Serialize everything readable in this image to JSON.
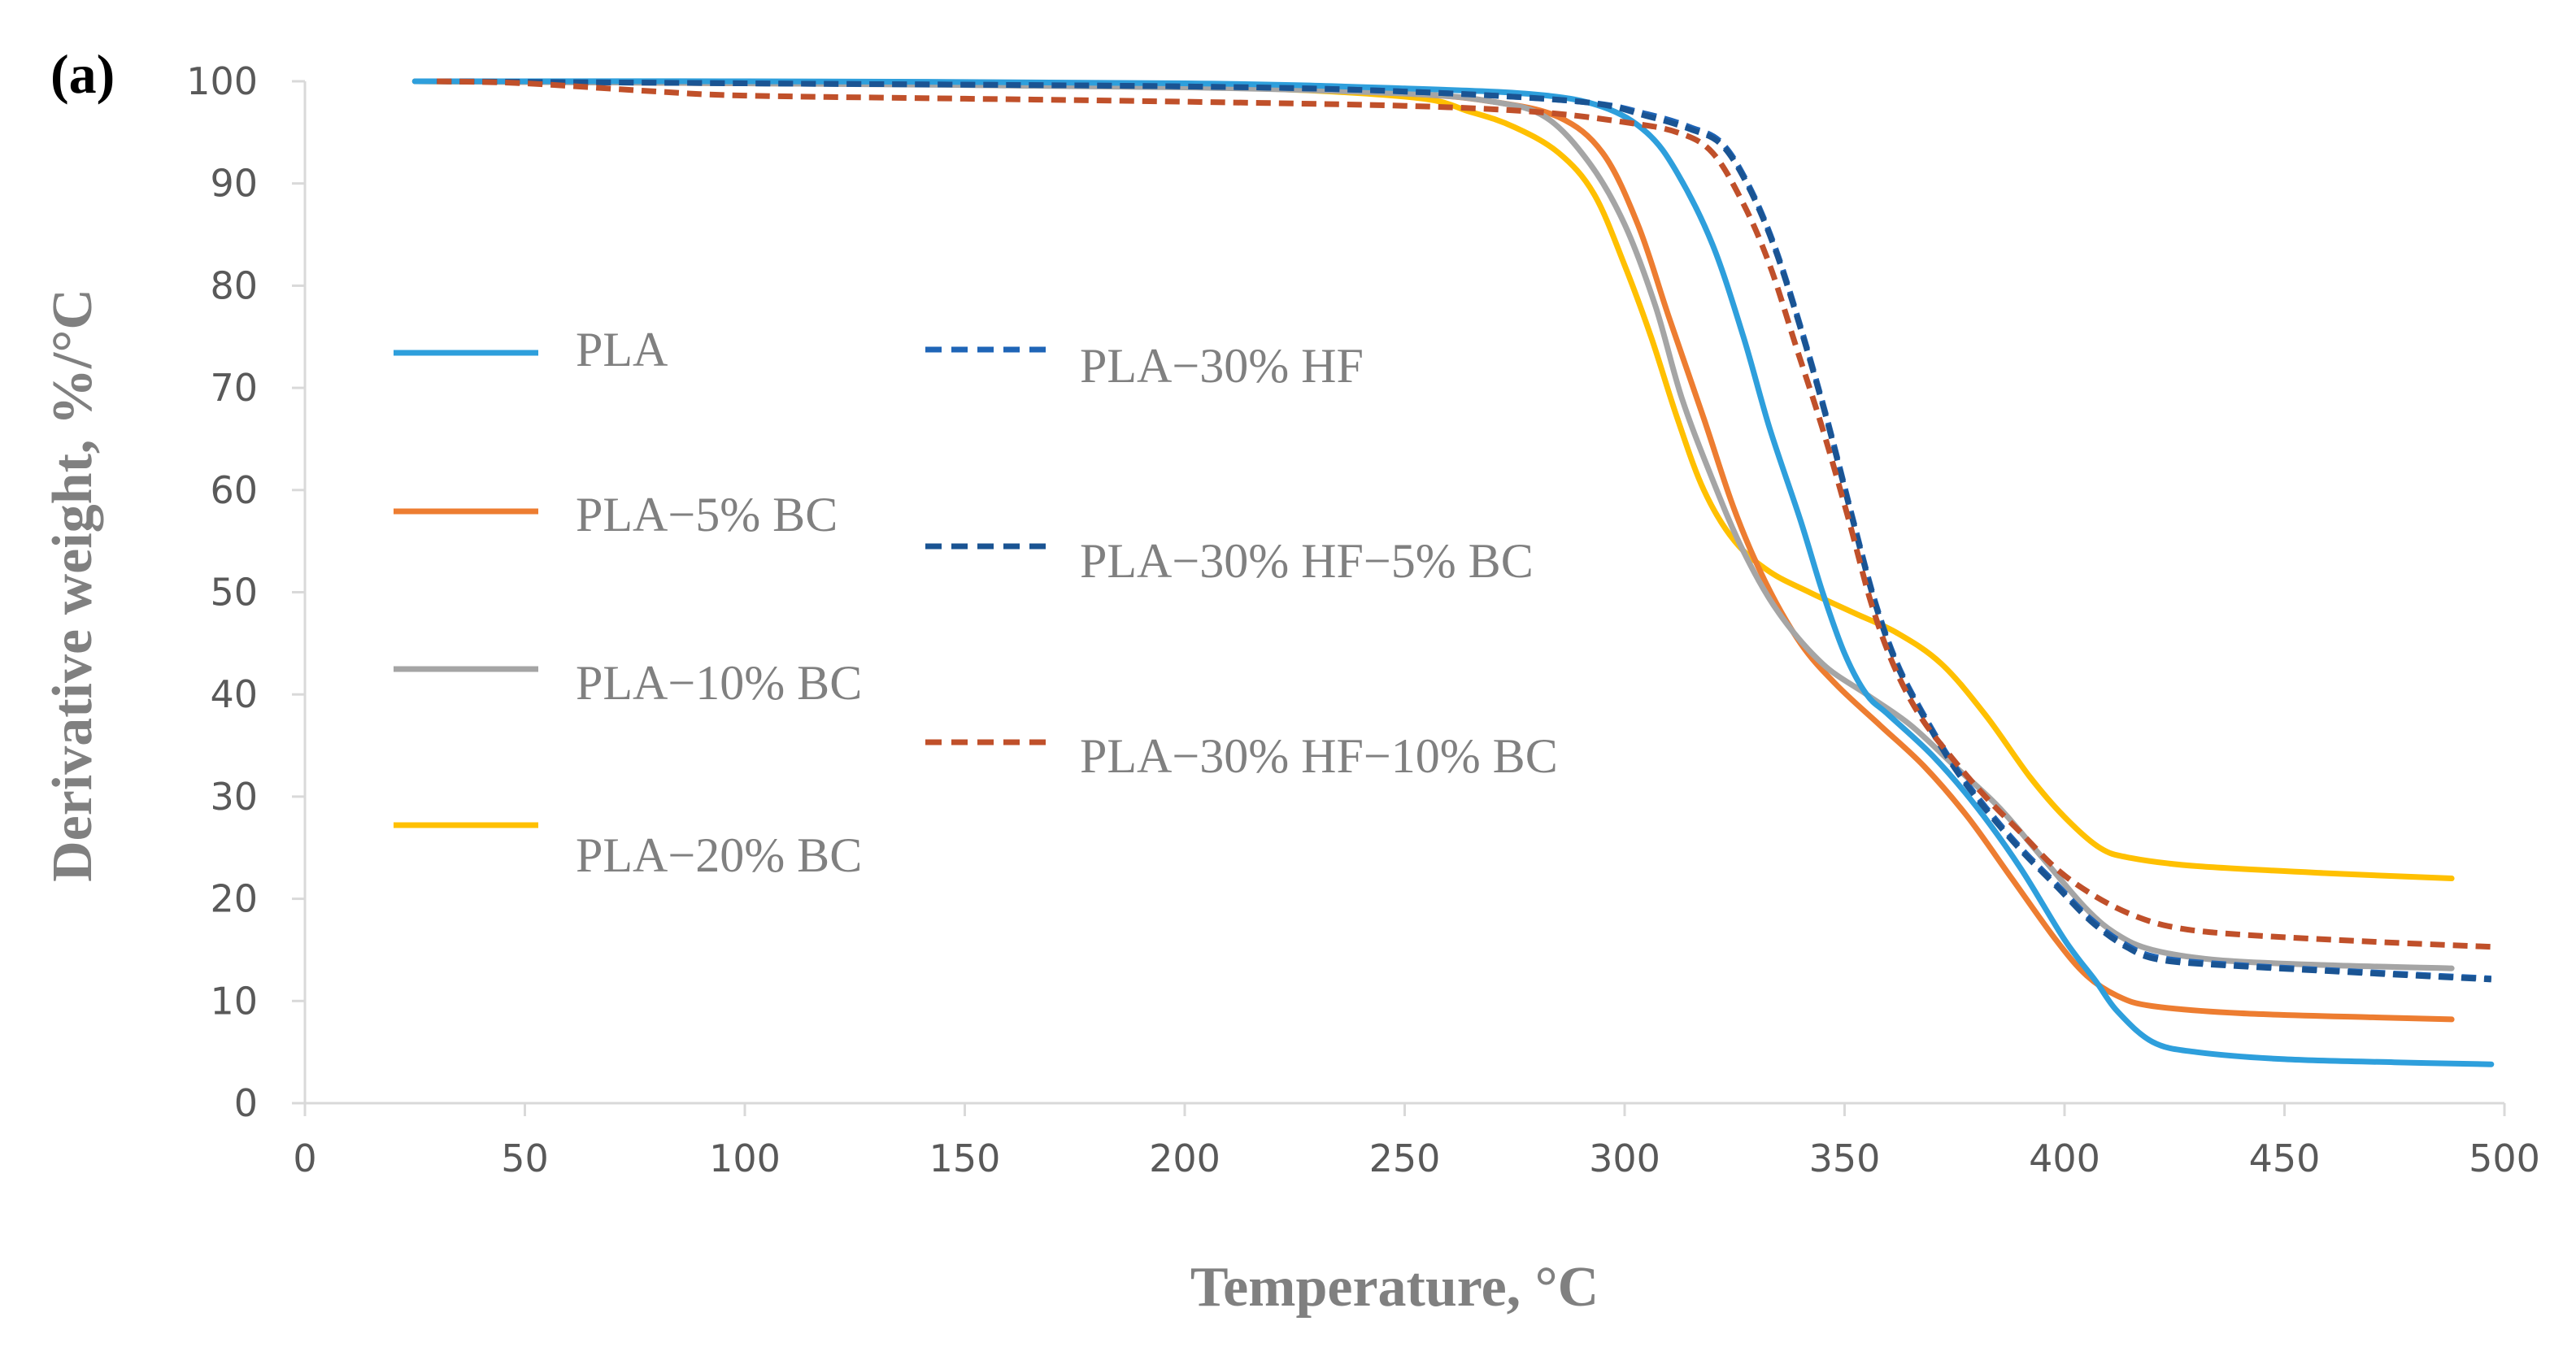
{
  "panel_label": "(a)",
  "chart_data": {
    "type": "line",
    "title": "",
    "xlabel": "Temperature, °C",
    "ylabel": "Derivative weight, %/°C",
    "xlim": [
      0,
      500
    ],
    "ylim": [
      0,
      100
    ],
    "xticks": [
      0,
      50,
      100,
      150,
      200,
      250,
      300,
      350,
      400,
      450,
      500
    ],
    "yticks": [
      0,
      10,
      20,
      30,
      40,
      50,
      60,
      70,
      80,
      90,
      100
    ],
    "grid": false,
    "legend_position": "left, inside plot, two columns",
    "series": [
      {
        "name": "PLA",
        "color": "#2e9fdc",
        "dash": "solid",
        "points": [
          [
            25,
            100
          ],
          [
            100,
            100
          ],
          [
            200,
            99.8
          ],
          [
            250,
            99.3
          ],
          [
            280,
            98.7
          ],
          [
            295,
            97.5
          ],
          [
            305,
            95
          ],
          [
            312,
            91
          ],
          [
            320,
            84
          ],
          [
            327,
            75
          ],
          [
            333,
            66
          ],
          [
            340,
            57
          ],
          [
            345,
            50
          ],
          [
            350,
            44
          ],
          [
            355,
            40
          ],
          [
            360,
            38
          ],
          [
            370,
            34
          ],
          [
            380,
            29
          ],
          [
            390,
            23
          ],
          [
            400,
            16
          ],
          [
            407,
            12
          ],
          [
            412,
            9
          ],
          [
            420,
            6
          ],
          [
            430,
            5
          ],
          [
            450,
            4.3
          ],
          [
            475,
            4
          ],
          [
            497,
            3.8
          ]
        ]
      },
      {
        "name": "PLA−5% BC",
        "color": "#ed7d31",
        "dash": "solid",
        "points": [
          [
            25,
            100
          ],
          [
            100,
            99.8
          ],
          [
            200,
            99.5
          ],
          [
            250,
            98.8
          ],
          [
            270,
            98
          ],
          [
            285,
            96.5
          ],
          [
            295,
            93
          ],
          [
            303,
            86
          ],
          [
            310,
            77
          ],
          [
            318,
            67
          ],
          [
            325,
            58
          ],
          [
            332,
            51
          ],
          [
            340,
            45
          ],
          [
            348,
            41
          ],
          [
            358,
            37
          ],
          [
            368,
            33
          ],
          [
            378,
            28
          ],
          [
            388,
            22
          ],
          [
            398,
            16
          ],
          [
            405,
            12.5
          ],
          [
            412,
            10.5
          ],
          [
            420,
            9.5
          ],
          [
            440,
            8.8
          ],
          [
            470,
            8.4
          ],
          [
            488,
            8.2
          ]
        ]
      },
      {
        "name": "PLA−10% BC",
        "color": "#a5a5a5",
        "dash": "solid",
        "points": [
          [
            25,
            100
          ],
          [
            100,
            99.8
          ],
          [
            200,
            99.4
          ],
          [
            250,
            98.8
          ],
          [
            270,
            98
          ],
          [
            282,
            96.5
          ],
          [
            292,
            92
          ],
          [
            300,
            86
          ],
          [
            307,
            78
          ],
          [
            313,
            69
          ],
          [
            320,
            61
          ],
          [
            327,
            54
          ],
          [
            335,
            48
          ],
          [
            345,
            43
          ],
          [
            355,
            40
          ],
          [
            365,
            37
          ],
          [
            375,
            33
          ],
          [
            385,
            29
          ],
          [
            395,
            24
          ],
          [
            405,
            19
          ],
          [
            412,
            16.5
          ],
          [
            420,
            15
          ],
          [
            435,
            14
          ],
          [
            460,
            13.5
          ],
          [
            488,
            13.2
          ]
        ]
      },
      {
        "name": "PLA−20% BC",
        "color": "#ffc000",
        "dash": "solid",
        "points": [
          [
            25,
            100
          ],
          [
            100,
            99.9
          ],
          [
            200,
            99.5
          ],
          [
            250,
            98.5
          ],
          [
            265,
            97
          ],
          [
            275,
            95.5
          ],
          [
            285,
            93
          ],
          [
            293,
            89
          ],
          [
            300,
            82
          ],
          [
            306,
            75
          ],
          [
            312,
            67
          ],
          [
            318,
            60
          ],
          [
            325,
            55
          ],
          [
            333,
            52
          ],
          [
            342,
            50
          ],
          [
            352,
            48
          ],
          [
            362,
            46
          ],
          [
            372,
            43
          ],
          [
            382,
            38
          ],
          [
            392,
            32
          ],
          [
            400,
            28
          ],
          [
            408,
            25
          ],
          [
            415,
            24
          ],
          [
            430,
            23.2
          ],
          [
            460,
            22.5
          ],
          [
            488,
            22
          ]
        ]
      },
      {
        "name": "PLA−30% HF",
        "color": "#1f65b7",
        "dash": "dashed",
        "points": [
          [
            30,
            100
          ],
          [
            100,
            99.8
          ],
          [
            200,
            99.5
          ],
          [
            250,
            99
          ],
          [
            290,
            98
          ],
          [
            305,
            96.8
          ],
          [
            315,
            95.5
          ],
          [
            322,
            94
          ],
          [
            328,
            90
          ],
          [
            334,
            84
          ],
          [
            340,
            76
          ],
          [
            346,
            67
          ],
          [
            352,
            57
          ],
          [
            357,
            49
          ],
          [
            362,
            43
          ],
          [
            368,
            38
          ],
          [
            375,
            33
          ],
          [
            382,
            29
          ],
          [
            390,
            25
          ],
          [
            398,
            21.5
          ],
          [
            406,
            18
          ],
          [
            414,
            15.5
          ],
          [
            422,
            14.2
          ],
          [
            440,
            13.5
          ],
          [
            470,
            12.8
          ],
          [
            497,
            12.2
          ]
        ]
      },
      {
        "name": "PLA−30% HF−5% BC",
        "color": "#1a5493",
        "dash": "dashed",
        "points": [
          [
            30,
            100
          ],
          [
            100,
            99.8
          ],
          [
            200,
            99.5
          ],
          [
            250,
            99
          ],
          [
            290,
            98
          ],
          [
            305,
            96.6
          ],
          [
            315,
            95.3
          ],
          [
            322,
            93.8
          ],
          [
            328,
            89.8
          ],
          [
            334,
            83.8
          ],
          [
            340,
            75.8
          ],
          [
            346,
            66.8
          ],
          [
            352,
            56.8
          ],
          [
            357,
            48.8
          ],
          [
            362,
            42.8
          ],
          [
            368,
            37.8
          ],
          [
            375,
            32.8
          ],
          [
            382,
            28.8
          ],
          [
            390,
            24.8
          ],
          [
            398,
            21.3
          ],
          [
            406,
            17.8
          ],
          [
            414,
            15.3
          ],
          [
            422,
            14
          ],
          [
            440,
            13.4
          ],
          [
            470,
            12.7
          ],
          [
            497,
            12.1
          ]
        ]
      },
      {
        "name": "PLA−30% HF−10% BC",
        "color": "#c0502a",
        "dash": "dashed",
        "points": [
          [
            30,
            100
          ],
          [
            50,
            99.8
          ],
          [
            80,
            99
          ],
          [
            100,
            98.6
          ],
          [
            150,
            98.3
          ],
          [
            200,
            98
          ],
          [
            250,
            97.6
          ],
          [
            280,
            97
          ],
          [
            300,
            96
          ],
          [
            312,
            95
          ],
          [
            320,
            93
          ],
          [
            327,
            88
          ],
          [
            333,
            82
          ],
          [
            339,
            74
          ],
          [
            345,
            66
          ],
          [
            351,
            57
          ],
          [
            356,
            49
          ],
          [
            361,
            43
          ],
          [
            367,
            38
          ],
          [
            374,
            34
          ],
          [
            382,
            30
          ],
          [
            390,
            26.5
          ],
          [
            398,
            23
          ],
          [
            406,
            20.5
          ],
          [
            415,
            18.5
          ],
          [
            425,
            17.2
          ],
          [
            440,
            16.5
          ],
          [
            470,
            15.8
          ],
          [
            497,
            15.3
          ]
        ]
      }
    ]
  }
}
